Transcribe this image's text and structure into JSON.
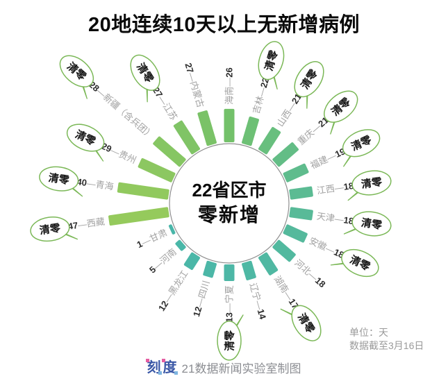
{
  "title": "20地连续10天以上无新增病例",
  "bubble_label": "清零",
  "unit_note": "单位：天",
  "data_note": "数据截至3月16日",
  "footer": {
    "logo_char1": "刻",
    "logo_char2": "度",
    "credit": "21数据新闻实验室制图"
  },
  "colors": {
    "bubble_border": "#7bb857",
    "number_text": "#2d2d2d",
    "name_text": "#a2a2a2",
    "circle_border": "#8f8f8f",
    "note_text": "#9a9a9a",
    "credit_text": "#8b8d92",
    "logo_blue": "#3a57a6",
    "logo_pink": "#e45ea2",
    "green_end": "#95ca5c",
    "teal_end": "#49b6a9"
  },
  "chart_data": {
    "type": "radial-bar",
    "unit": "天",
    "order": "clockwise-from-top",
    "center": [
      "22省区市",
      "零新增"
    ],
    "note": "数据截至3月16日",
    "series": [
      {
        "name": "海南",
        "days": 26,
        "cleared": false,
        "color": "#73c16a"
      },
      {
        "name": "吉林",
        "days": 22,
        "cleared": true,
        "color": "#6dc075"
      },
      {
        "name": "山西",
        "days": 21,
        "cleared": true,
        "color": "#68bf7e"
      },
      {
        "name": "重庆",
        "days": 21,
        "cleared": true,
        "color": "#63bd86"
      },
      {
        "name": "福建",
        "days": 19,
        "cleared": true,
        "color": "#5fbc8d"
      },
      {
        "name": "江西",
        "days": 18,
        "cleared": true,
        "color": "#5bbb93"
      },
      {
        "name": "天津",
        "days": 18,
        "cleared": true,
        "color": "#58ba98"
      },
      {
        "name": "安徽",
        "days": 18,
        "cleared": true,
        "color": "#55b99c"
      },
      {
        "name": "河北",
        "days": 18,
        "cleared": false,
        "color": "#52b99f"
      },
      {
        "name": "湖南",
        "days": 17,
        "cleared": true,
        "color": "#50b8a2"
      },
      {
        "name": "辽宁",
        "days": 14,
        "cleared": false,
        "color": "#4eb8a4"
      },
      {
        "name": "宁夏",
        "days": 13,
        "cleared": true,
        "color": "#4db7a6"
      },
      {
        "name": "四川",
        "days": 12,
        "cleared": false,
        "color": "#4cb7a7"
      },
      {
        "name": "黑龙江",
        "days": 12,
        "cleared": false,
        "color": "#4bb7a8"
      },
      {
        "name": "河南",
        "days": 5,
        "cleared": false,
        "color": "#4ab7a8"
      },
      {
        "name": "甘肃",
        "days": 1,
        "cleared": false,
        "color": "#49b6a9"
      },
      {
        "name": "西藏",
        "days": 47,
        "cleared": true,
        "color": "#95ca5c"
      },
      {
        "name": "青海",
        "days": 40,
        "cleared": true,
        "color": "#91c95e"
      },
      {
        "name": "贵州",
        "days": 29,
        "cleared": true,
        "color": "#8cc761"
      },
      {
        "name": "新疆（含兵团）",
        "days": 28,
        "cleared": true,
        "color": "#86c663"
      },
      {
        "name": "江苏",
        "days": 27,
        "cleared": true,
        "color": "#80c466"
      },
      {
        "name": "内蒙古",
        "days": 27,
        "cleared": false,
        "color": "#7ac267"
      }
    ]
  }
}
